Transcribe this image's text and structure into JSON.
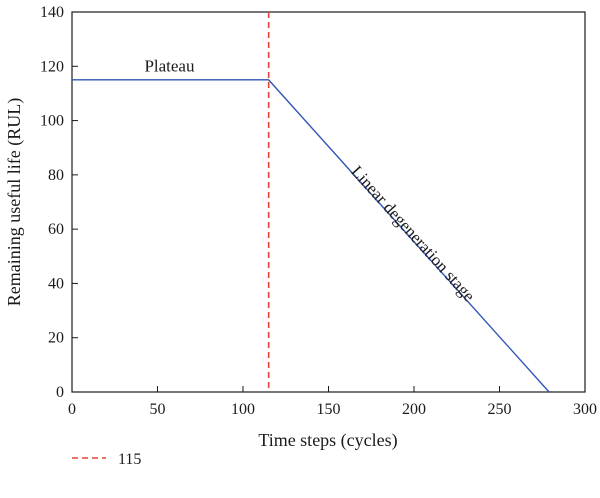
{
  "chart_data": {
    "type": "line",
    "xlabel": "Time steps (cycles)",
    "ylabel": "Remaining useful life (RUL)",
    "xlim": [
      0,
      300
    ],
    "ylim": [
      0,
      140
    ],
    "xticks": [
      0,
      50,
      100,
      150,
      200,
      250,
      300
    ],
    "yticks": [
      0,
      20,
      40,
      60,
      80,
      100,
      120,
      140
    ],
    "grid": false,
    "series": [
      {
        "color": "#2f55b7",
        "x": [
          0,
          115,
          279
        ],
        "y": [
          115,
          115,
          0
        ]
      }
    ],
    "vline": {
      "x": 115,
      "color": "#e8413a",
      "style": "dashed"
    },
    "annotations": [
      {
        "text": "Plateau",
        "x": 57,
        "y": 118
      },
      {
        "text": "Linear degeneration stage",
        "x": 197,
        "y": 57
      }
    ],
    "legend": {
      "position": "bottom-left",
      "entries": [
        {
          "label": "115",
          "color": "#e8413a",
          "style": "dashed"
        }
      ]
    }
  }
}
